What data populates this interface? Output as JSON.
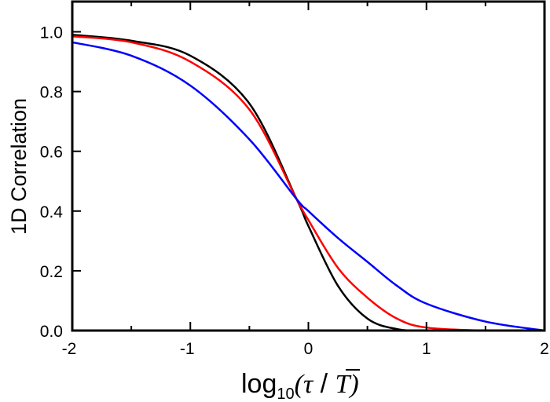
{
  "chart_data": {
    "type": "line",
    "title": "",
    "xlabel": "log10(τ / T̄)",
    "ylabel": "1D Correlation",
    "xlim": [
      -2,
      2
    ],
    "ylim": [
      0,
      1.1
    ],
    "grid": false,
    "legend": null,
    "x_ticks": [
      -2,
      -1,
      0,
      1,
      2
    ],
    "x_minor_ticks": [
      -1.5,
      -0.5,
      0.5,
      1.5
    ],
    "y_ticks": [
      0.0,
      0.2,
      0.4,
      0.6,
      0.8,
      1.0
    ],
    "x_tick_labels": [
      "-2",
      "-1",
      "0",
      "1",
      "2"
    ],
    "y_tick_labels": [
      "0.0",
      "0.2",
      "0.4",
      "0.6",
      "0.8",
      "1.0"
    ],
    "x": [
      -2.0,
      -1.5,
      -1.0,
      -0.5,
      -0.1,
      0.0,
      0.25,
      0.5,
      0.75,
      1.0,
      1.5,
      2.0
    ],
    "series": [
      {
        "name": "black",
        "color": "#000000",
        "values": [
          0.99,
          0.97,
          0.92,
          0.76,
          0.44,
          0.35,
          0.15,
          0.04,
          0.005,
          0.0,
          0.0,
          0.0
        ]
      },
      {
        "name": "red",
        "color": "#ff0000",
        "values": [
          0.985,
          0.965,
          0.9,
          0.74,
          0.44,
          0.37,
          0.21,
          0.11,
          0.04,
          0.01,
          0.0,
          0.0
        ]
      },
      {
        "name": "blue",
        "color": "#0000ff",
        "values": [
          0.965,
          0.92,
          0.82,
          0.64,
          0.44,
          0.4,
          0.31,
          0.23,
          0.15,
          0.09,
          0.03,
          0.0
        ]
      }
    ]
  },
  "labels": {
    "ylabel": "1D Correlation",
    "xlabel_prefix": "log",
    "xlabel_sub": "10",
    "xlabel_open": "(",
    "xlabel_tau": "τ",
    "xlabel_slash": " / ",
    "xlabel_T": "T",
    "xlabel_close": ")"
  }
}
